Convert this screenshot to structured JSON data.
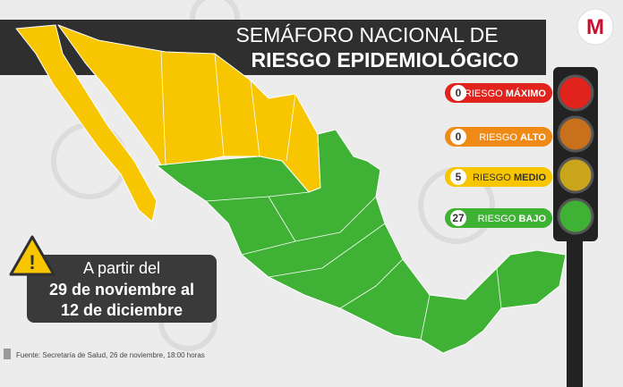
{
  "header": {
    "title_line1": "SEMÁFORO NACIONAL DE",
    "title_line2": "RIESGO EPIDEMIOLÓGICO"
  },
  "logo": "M",
  "legend": [
    {
      "count": 0,
      "prefix": "RIESGO",
      "level": "MÁXIMO"
    },
    {
      "count": 0,
      "prefix": "RIESGO",
      "level": "ALTO"
    },
    {
      "count": 5,
      "prefix": "RIESGO",
      "level": "MEDIO"
    },
    {
      "count": 27,
      "prefix": "RIESGO",
      "level": "BAJO"
    }
  ],
  "date_range": {
    "line1": "A partir del",
    "line2": "29 de noviembre al",
    "line3": "12 de diciembre"
  },
  "source": "Fuente: Secretaría de Salud, 26 de noviembre, 18:00 horas"
}
